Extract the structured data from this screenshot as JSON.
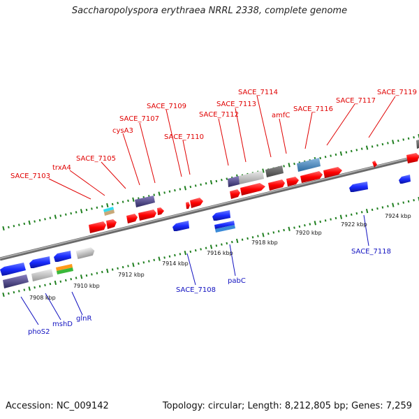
{
  "title": "Saccharopolyspora erythraea NRRL 2338, complete genome",
  "footer": {
    "accession": "Accession: NC_009142",
    "summary": "Topology: circular; Length: 8,212,805 bp; Genes: 7,259"
  },
  "ticks": [
    "7908 kbp",
    "7910 kbp",
    "7912 kbp",
    "7914 kbp",
    "7916 kbp",
    "7918 kbp",
    "7920 kbp",
    "7922 kbp",
    "7924 kbp"
  ],
  "top_labels": [
    "SACE_7103",
    "trxA4",
    "SACE_7105",
    "cysA3",
    "SACE_7107",
    "SACE_7109",
    "SACE_7110",
    "SACE_7112",
    "SACE_7113",
    "SACE_7114",
    "amfC",
    "SACE_7116",
    "SACE_7117",
    "SACE_7119"
  ],
  "bottom_labels": [
    "phoS2",
    "mshD",
    "glnR",
    "SACE_7108",
    "pabC",
    "SACE_7118"
  ],
  "colors": {
    "forward_gene": "#ff1a1a",
    "reverse_gene": "#1a2cff",
    "backbone": "#9a9a9a",
    "tick": "#1f7f1f"
  }
}
